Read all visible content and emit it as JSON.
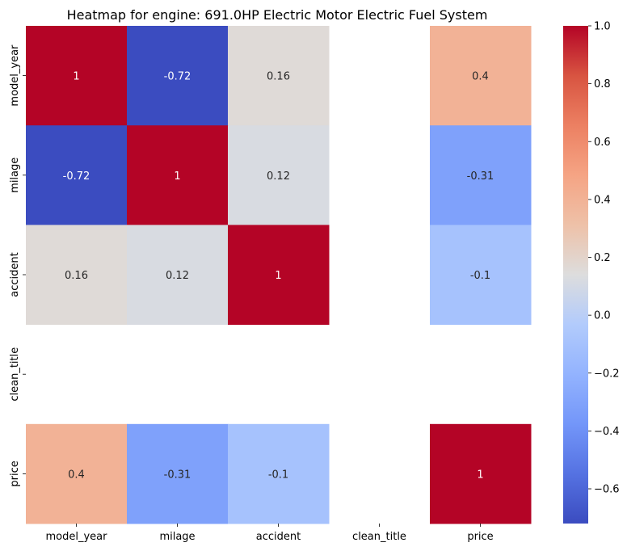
{
  "chart_data": {
    "type": "heatmap",
    "title": "Heatmap for engine: 691.0HP Electric Motor Electric Fuel System",
    "x_labels": [
      "model_year",
      "milage",
      "accident",
      "clean_title",
      "price"
    ],
    "y_labels": [
      "model_year",
      "milage",
      "accident",
      "clean_title",
      "price"
    ],
    "values": [
      [
        1,
        -0.72,
        0.16,
        null,
        0.4
      ],
      [
        -0.72,
        1,
        0.12,
        null,
        -0.31
      ],
      [
        0.16,
        0.12,
        1,
        null,
        -0.1
      ],
      [
        null,
        null,
        null,
        null,
        null
      ],
      [
        0.4,
        -0.31,
        -0.1,
        null,
        1
      ]
    ],
    "annotations": [
      [
        "1",
        "-0.72",
        "0.16",
        "",
        "0.4"
      ],
      [
        "-0.72",
        "1",
        "0.12",
        "",
        "-0.31"
      ],
      [
        "0.16",
        "0.12",
        "1",
        "",
        "-0.1"
      ],
      [
        "",
        "",
        "",
        "",
        ""
      ],
      [
        "0.4",
        "-0.31",
        "-0.1",
        "",
        "1"
      ]
    ],
    "colormap": "coolwarm",
    "color_range": [
      -0.72,
      1
    ],
    "colorbar_ticks": [
      1.0,
      0.8,
      0.6,
      0.4,
      0.2,
      0.0,
      -0.2,
      -0.4,
      -0.6
    ],
    "colorbar_tick_labels": [
      "1.0",
      "0.8",
      "0.6",
      "0.4",
      "0.2",
      "0.0",
      "−0.2",
      "−0.4",
      "−0.6"
    ]
  }
}
